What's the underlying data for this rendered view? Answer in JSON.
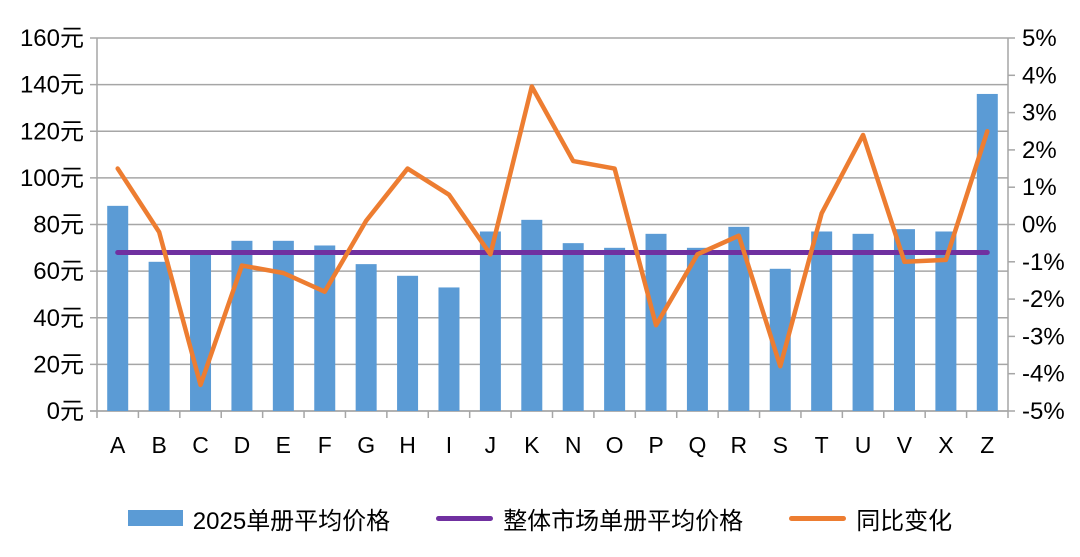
{
  "chart_data": {
    "type": "bar",
    "title": "",
    "categories": [
      "A",
      "B",
      "C",
      "D",
      "E",
      "F",
      "G",
      "H",
      "I",
      "J",
      "K",
      "N",
      "O",
      "P",
      "Q",
      "R",
      "S",
      "T",
      "U",
      "V",
      "X",
      "Z"
    ],
    "series": [
      {
        "name": "2025单册平均价格",
        "type": "bar",
        "axis": "left",
        "color": "#5B9BD5",
        "values": [
          88,
          64,
          67,
          73,
          73,
          71,
          63,
          58,
          53,
          77,
          82,
          72,
          70,
          76,
          70,
          79,
          61,
          77,
          76,
          78,
          77,
          136
        ]
      },
      {
        "name": "整体市场单册平均价格",
        "type": "line",
        "axis": "left",
        "color": "#7030A0",
        "values": [
          68,
          68,
          68,
          68,
          68,
          68,
          68,
          68,
          68,
          68,
          68,
          68,
          68,
          68,
          68,
          68,
          68,
          68,
          68,
          68,
          68,
          68
        ]
      },
      {
        "name": "同比变化",
        "type": "line",
        "axis": "right",
        "color": "#ED7D31",
        "values": [
          1.5,
          -0.2,
          -4.3,
          -1.1,
          -1.3,
          -1.8,
          0.1,
          1.5,
          0.8,
          -0.8,
          3.7,
          1.7,
          1.5,
          -2.7,
          -0.8,
          -0.3,
          -3.8,
          0.3,
          2.4,
          -1.0,
          -0.95,
          2.5
        ]
      }
    ],
    "left_axis": {
      "min": 0,
      "max": 160,
      "step": 20,
      "unit": "元",
      "tick_labels": [
        "0元",
        "20元",
        "40元",
        "60元",
        "80元",
        "100元",
        "120元",
        "140元",
        "160元"
      ]
    },
    "right_axis": {
      "min": -5,
      "max": 5,
      "step": 1,
      "unit": "%",
      "tick_labels": [
        "-5%",
        "-4%",
        "-3%",
        "-2%",
        "-1%",
        "0%",
        "1%",
        "2%",
        "3%",
        "4%",
        "5%"
      ]
    },
    "grid": true,
    "legend_position": "bottom",
    "grid_color": "#A6A6A6",
    "background": "#FFFFFF"
  }
}
